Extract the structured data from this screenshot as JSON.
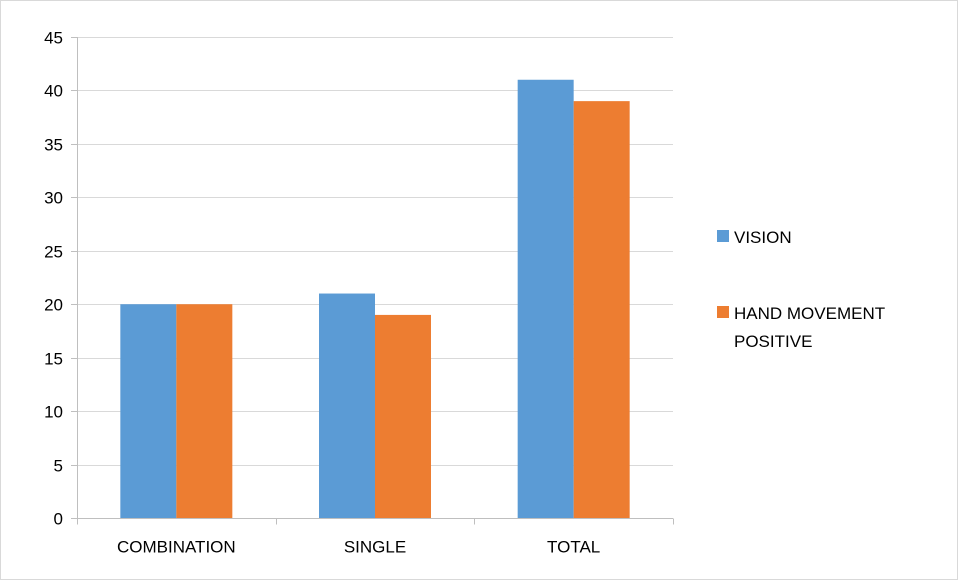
{
  "chart_data": {
    "type": "bar",
    "categories": [
      "COMBINATION",
      "SINGLE",
      "TOTAL"
    ],
    "series": [
      {
        "name": "VISION",
        "values": [
          20,
          21,
          41
        ],
        "color": "#5b9bd5"
      },
      {
        "name": "HAND MOVEMENT POSITIVE",
        "values": [
          20,
          19,
          39
        ],
        "color": "#ed7d31"
      }
    ],
    "ylim": [
      0,
      45
    ],
    "yticks": [
      0,
      5,
      10,
      15,
      20,
      25,
      30,
      35,
      40,
      45
    ],
    "grid": true,
    "legend": "right",
    "title": "",
    "xlabel": "",
    "ylabel": ""
  }
}
